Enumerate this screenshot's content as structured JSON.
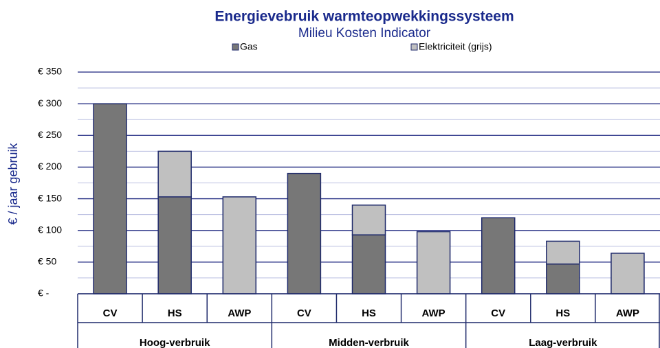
{
  "chart_data": {
    "type": "stacked_bar",
    "title": "Energievebruik  warmteopwekkingssysteem",
    "subtitle": "Milieu Kosten Indicator",
    "y_label": "€ / jaar gebruik",
    "groups": [
      {
        "name": "Hoog-verbruik",
        "categories": [
          "CV",
          "HS",
          "AWP"
        ]
      },
      {
        "name": "Midden-verbruik",
        "categories": [
          "CV",
          "HS",
          "AWP"
        ]
      },
      {
        "name": "Laag-verbruik",
        "categories": [
          "CV",
          "HS",
          "AWP"
        ]
      }
    ],
    "series": [
      {
        "name": "Gas",
        "color": "#777777",
        "values": [
          300,
          153,
          null,
          190,
          93,
          null,
          120,
          47,
          null
        ]
      },
      {
        "name": "Elektriciteit (grijs)",
        "color": "#c0c0c0",
        "values": [
          null,
          72,
          153,
          null,
          47,
          98,
          null,
          36,
          64
        ]
      }
    ],
    "ylim": [
      0,
      350
    ],
    "yticks": [
      {
        "value": 0,
        "label": "€ -"
      },
      {
        "value": 50,
        "label": "€ 50"
      },
      {
        "value": 100,
        "label": "€ 100"
      },
      {
        "value": 150,
        "label": "€ 150"
      },
      {
        "value": 200,
        "label": "€ 200"
      },
      {
        "value": 250,
        "label": "€ 250"
      },
      {
        "value": 300,
        "label": "€ 300"
      },
      {
        "value": 350,
        "label": "€ 350"
      }
    ],
    "yminorticks": [
      25,
      75,
      125,
      175,
      225,
      275,
      325
    ],
    "grid": true,
    "legend": "top"
  }
}
